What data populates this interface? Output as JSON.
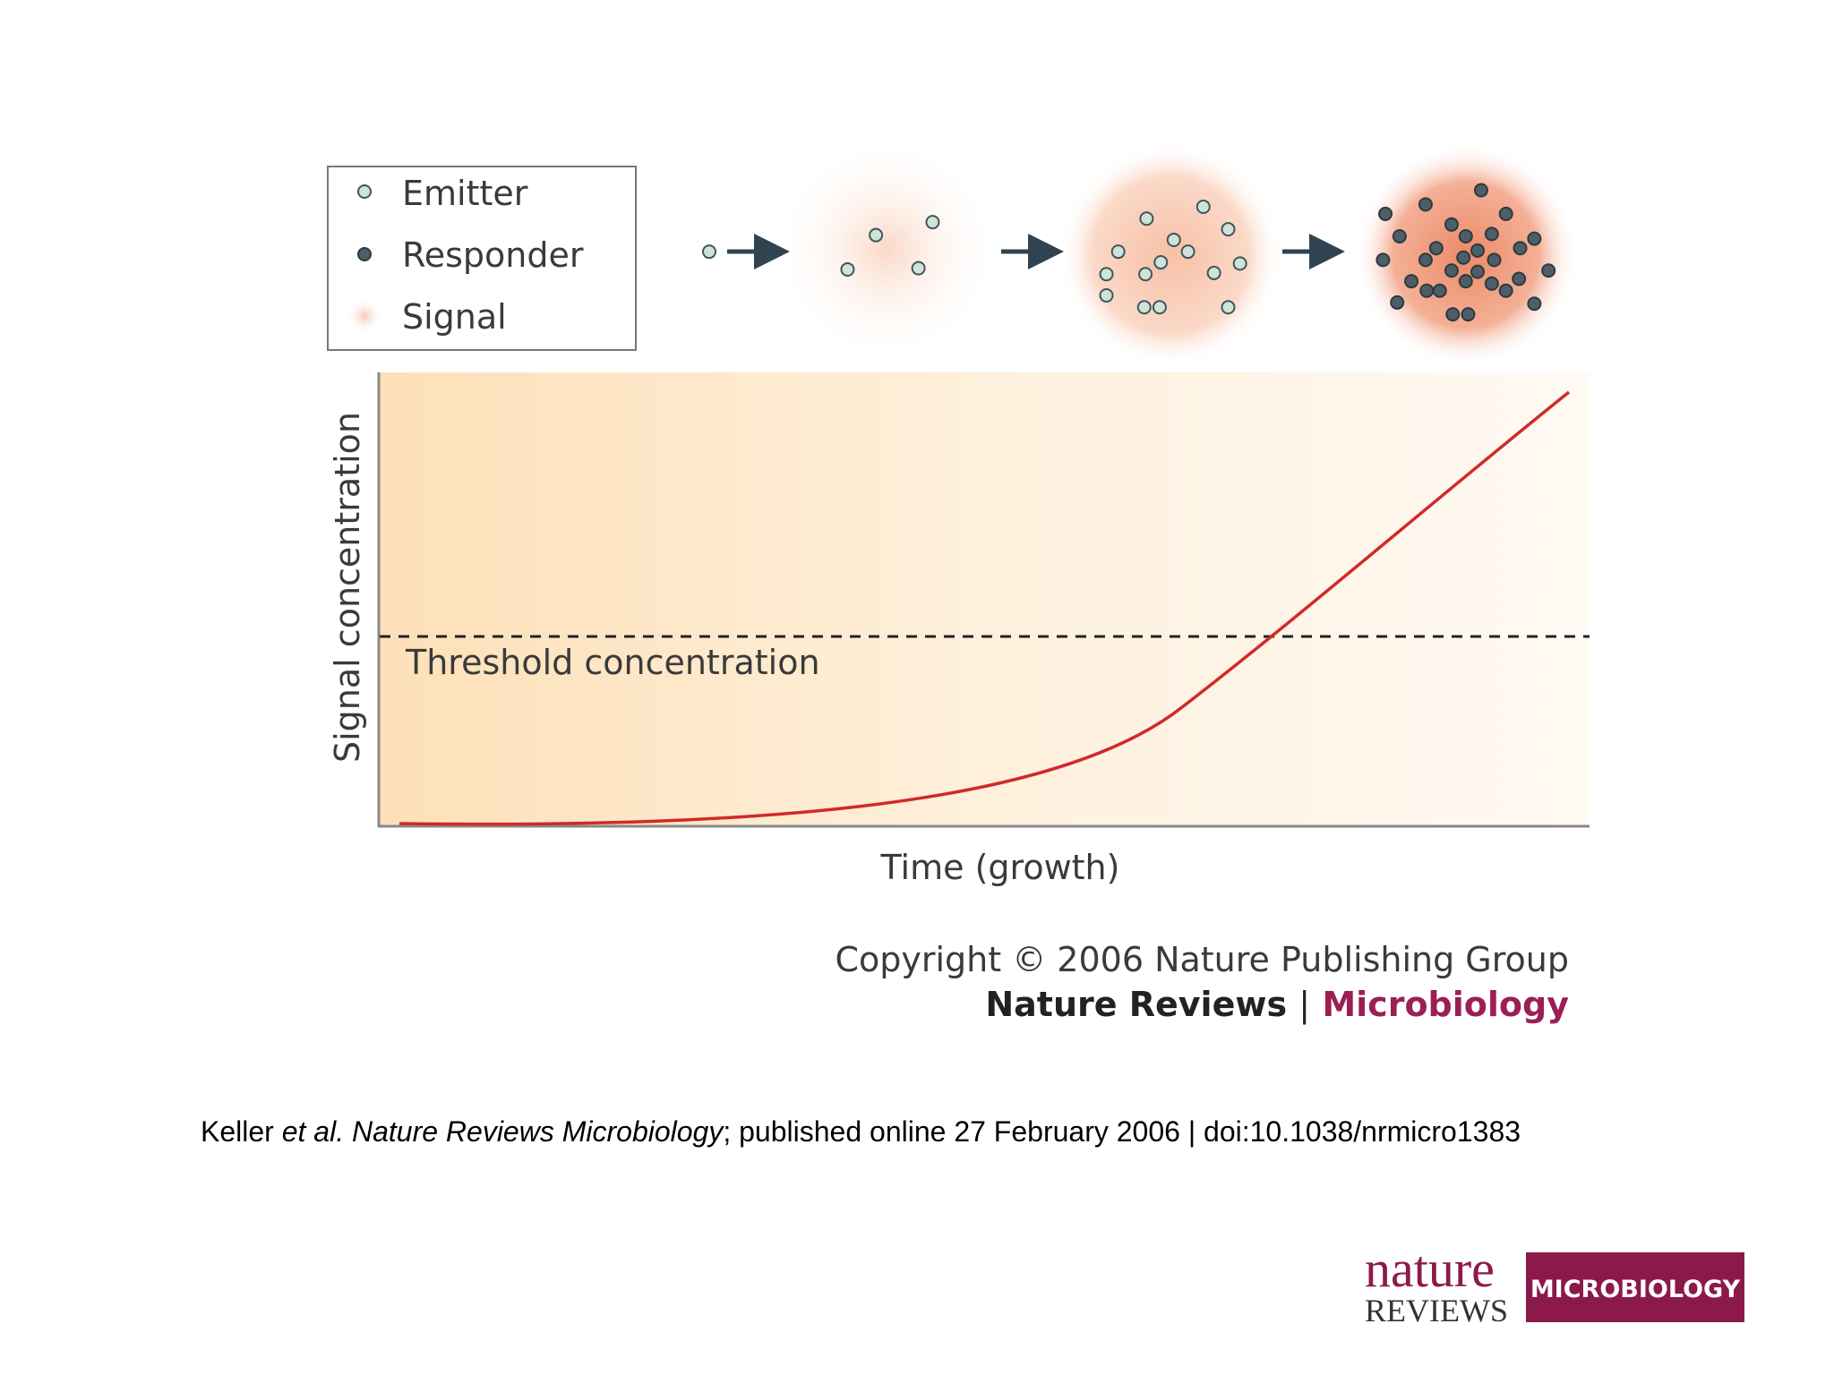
{
  "legend": {
    "items": [
      "Emitter",
      "Responder",
      "Signal"
    ]
  },
  "figure": {
    "y_axis_label": "Signal concentration",
    "x_axis_label": "Time (growth)",
    "threshold_label": "Threshold concentration",
    "copyright": "Copyright © 2006 Nature Publishing Group",
    "journal": "Nature Reviews",
    "separator": "|",
    "section": "Microbiology"
  },
  "citation": {
    "author": "Keller",
    "etal": "et al.",
    "journal": "Nature Reviews Microbiology",
    "rest": "; published online 27 February 2006 | doi:10.1038/nrmicro1383"
  },
  "logo": {
    "nature": "nature",
    "reviews": "REVIEWS",
    "microbiology": "MICROBIOLOGY"
  }
}
